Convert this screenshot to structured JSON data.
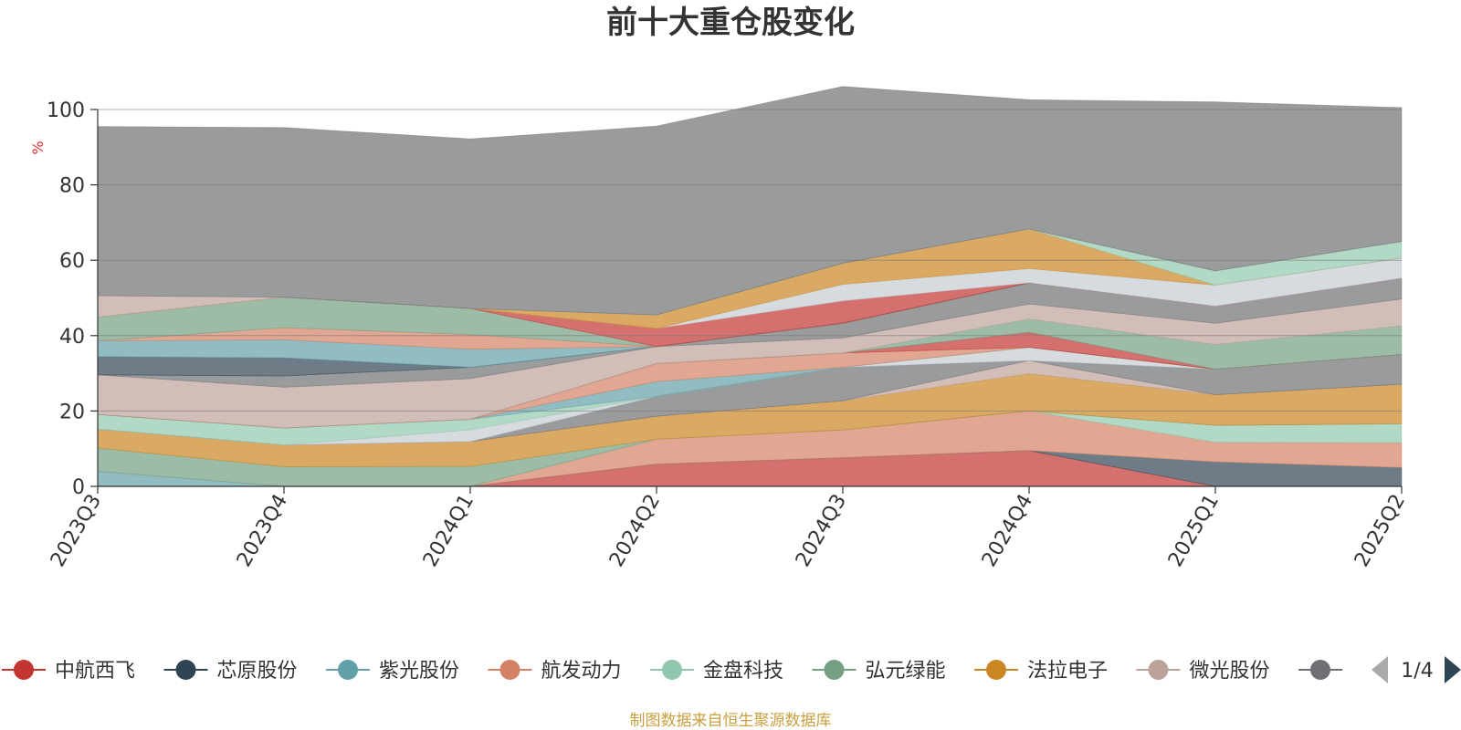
{
  "chart_data": {
    "type": "area",
    "stacked": true,
    "title": "前十大重仓股变化",
    "y_unit": "%",
    "ylim": [
      0,
      100
    ],
    "y_ticks": [
      "0",
      "20",
      "40",
      "60",
      "80",
      "100"
    ],
    "categories": [
      "2023Q3",
      "2023Q4",
      "2024Q1",
      "2024Q2",
      "2024Q3",
      "2024Q4",
      "2025Q1",
      "2025Q2"
    ],
    "series": [
      {
        "name": "中航西飞",
        "color": "#c23531",
        "values": [
          0,
          0,
          0,
          5.9,
          7.6,
          9.5,
          0,
          0
        ]
      },
      {
        "name": "芯原股份",
        "color": "#2f4554",
        "values": [
          0,
          0,
          0,
          0,
          0,
          0,
          6.5,
          5.0
        ]
      },
      {
        "name": "紫光股份",
        "color": "#61a0a8",
        "values": [
          4.0,
          0,
          0,
          0,
          0,
          0,
          0,
          0
        ]
      },
      {
        "name": "航发动力",
        "color": "#d48265",
        "values": [
          0,
          0,
          0,
          6.6,
          7.4,
          10.5,
          5.2,
          6.6
        ]
      },
      {
        "name": "金盘科技",
        "color": "#91c7ae",
        "values": [
          0,
          0,
          0,
          0,
          0,
          0,
          4.5,
          5.0
        ]
      },
      {
        "name": "弘元绿能",
        "color": "#749f83",
        "values": [
          6.2,
          5.2,
          5.3,
          0,
          0,
          0,
          0,
          0
        ]
      },
      {
        "name": "法拉电子",
        "color": "#ca8622",
        "values": [
          5.0,
          5.8,
          6.6,
          6.1,
          7.7,
          9.9,
          8.1,
          10.5
        ]
      },
      {
        "name": "微光股份",
        "color": "#bda29a",
        "values": [
          0,
          0,
          0,
          0,
          0,
          3.5,
          0,
          0
        ]
      },
      {
        "name": "",
        "color": "#6e7074",
        "values": [
          0,
          0,
          0,
          5.3,
          8.9,
          0,
          6.8,
          7.9
        ]
      },
      {
        "name": "",
        "color": "#c4ccd3",
        "values": [
          0,
          0,
          3.1,
          0,
          0,
          3.5,
          0,
          0
        ]
      },
      {
        "name": "",
        "color": "#91c7ae",
        "values": [
          3.9,
          4.5,
          2.8,
          0,
          0,
          0,
          0,
          0
        ]
      },
      {
        "name": "",
        "color": "#61a0a8",
        "values": [
          0,
          0,
          0,
          3.9,
          0,
          0,
          0,
          0
        ]
      },
      {
        "name": "",
        "color": "#d48265",
        "values": [
          0,
          0,
          0,
          4.8,
          3.8,
          0,
          0,
          0
        ]
      },
      {
        "name": "",
        "color": "#c23531",
        "values": [
          0,
          0,
          0,
          0,
          0,
          4.0,
          0,
          0
        ]
      },
      {
        "name": "",
        "color": "#749f83",
        "values": [
          0,
          0,
          0,
          0,
          0,
          3.5,
          6.5,
          7.6
        ]
      },
      {
        "name": "",
        "color": "#bda29a",
        "values": [
          10.5,
          10.8,
          10.8,
          4.5,
          4.0,
          4.0,
          5.7,
          7.1
        ]
      },
      {
        "name": "",
        "color": "#6e7074",
        "values": [
          0,
          3.0,
          3.0,
          0,
          3.9,
          5.6,
          4.5,
          5.5
        ]
      },
      {
        "name": "",
        "color": "#2f4554",
        "values": [
          4.8,
          4.8,
          0,
          0,
          0,
          0,
          0,
          0
        ]
      },
      {
        "name": "",
        "color": "#61a0a8",
        "values": [
          4.2,
          4.8,
          4.8,
          0,
          0,
          0,
          0,
          0
        ]
      },
      {
        "name": "",
        "color": "#d48265",
        "values": [
          0,
          3.2,
          3.9,
          0,
          0,
          0,
          0,
          0
        ]
      },
      {
        "name": "",
        "color": "#749f83",
        "values": [
          6.3,
          8.1,
          6.9,
          0,
          0,
          0,
          0,
          0
        ]
      },
      {
        "name": "",
        "color": "#c23531",
        "values": [
          0,
          0,
          0,
          4.8,
          5.9,
          0,
          0,
          0
        ]
      },
      {
        "name": "",
        "color": "#c4ccd3",
        "values": [
          0,
          0,
          0,
          0,
          4.4,
          3.8,
          5.6,
          5.4
        ]
      },
      {
        "name": "",
        "color": "#ca8622",
        "values": [
          0,
          0,
          0,
          3.6,
          5.6,
          10.5,
          0,
          0
        ]
      },
      {
        "name": "",
        "color": "#91c7ae",
        "values": [
          0,
          0,
          0,
          0,
          0,
          0,
          3.8,
          4.4
        ]
      },
      {
        "name": "",
        "color": "#bda29a",
        "values": [
          5.7,
          0,
          0,
          0,
          0,
          0,
          0,
          0
        ]
      },
      {
        "name": "",
        "color": "#6e7074",
        "values": [
          44.9,
          45.0,
          45.0,
          50.1,
          46.9,
          34.3,
          44.8,
          35.5
        ]
      }
    ],
    "legend": {
      "position": "bottom",
      "items": [
        "中航西飞",
        "芯原股份",
        "紫光股份",
        "航发动力",
        "金盘科技",
        "弘元绿能",
        "法拉电子",
        "微光股份"
      ],
      "page": "1/4"
    }
  },
  "footer": {
    "source": "制图数据来自恒生聚源数据库"
  },
  "colors": {
    "text": "#333333",
    "unit": "#e03030",
    "source": "#c8a040",
    "axis": "#333333",
    "grid": "#777777",
    "pager_prev": "#aaaaaa",
    "pager_next": "#2f4554"
  }
}
